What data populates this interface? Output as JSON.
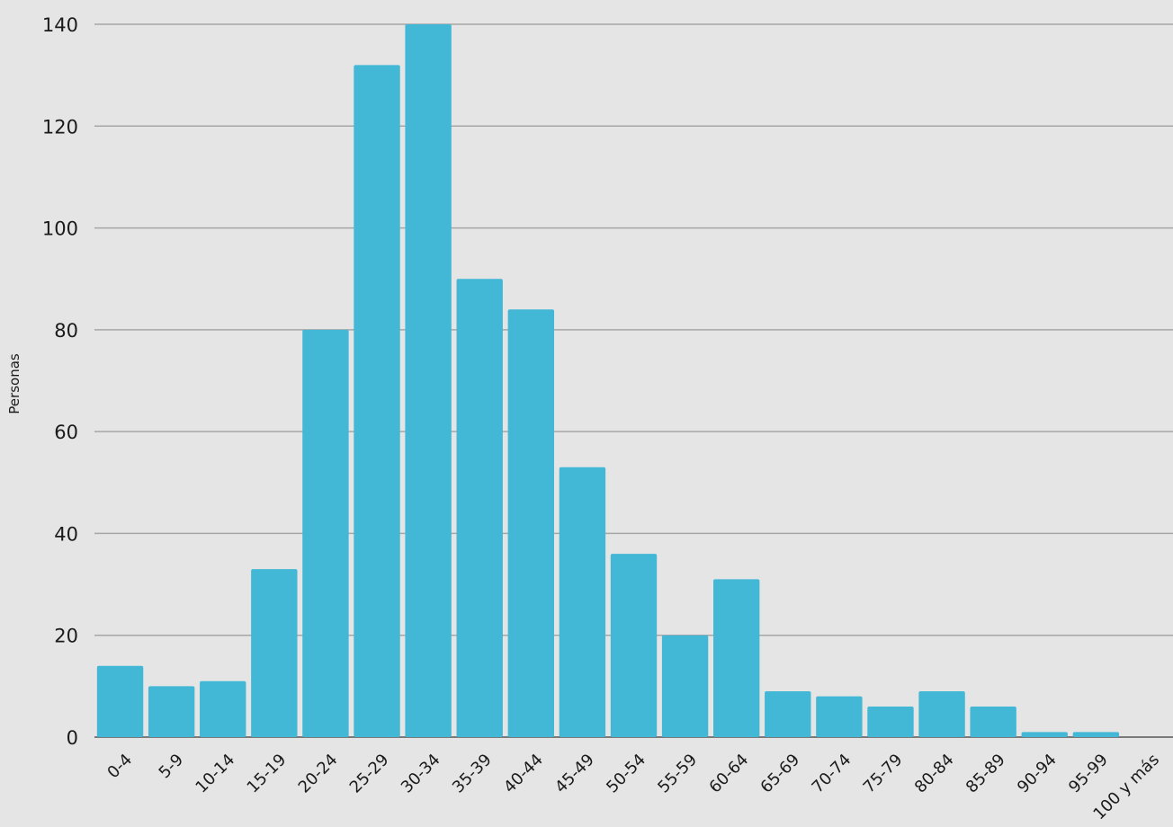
{
  "chart_data": {
    "type": "bar",
    "ylabel": "Personas",
    "xlabel": "",
    "ylim": [
      0,
      140
    ],
    "yticks": [
      0,
      20,
      40,
      60,
      80,
      100,
      120,
      140
    ],
    "grid": true,
    "categories": [
      "0-4",
      "5-9",
      "10-14",
      "15-19",
      "20-24",
      "25-29",
      "30-34",
      "35-39",
      "40-44",
      "45-49",
      "50-54",
      "55-59",
      "60-64",
      "65-69",
      "70-74",
      "75-79",
      "80-84",
      "85-89",
      "90-94",
      "95-99",
      "100 y más"
    ],
    "values": [
      14,
      10,
      11,
      33,
      80,
      132,
      140,
      90,
      84,
      53,
      36,
      20,
      31,
      9,
      8,
      6,
      9,
      6,
      1,
      1,
      0
    ],
    "bar_color": "#42b7d6",
    "gridline_color": "#a6a6a6",
    "background_color": "#e5e5e5"
  }
}
